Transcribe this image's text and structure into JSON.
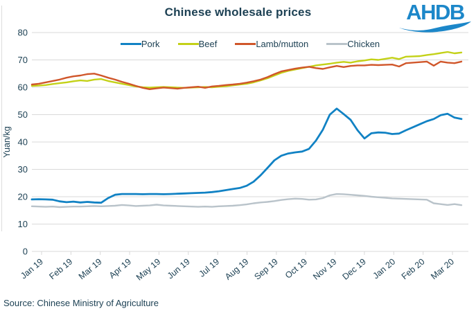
{
  "title": "Chinese wholesale prices",
  "logo": {
    "text": "AHDB",
    "color": "#1c87c9"
  },
  "source_text": "Source: Chinese Ministry of Agriculture",
  "colors": {
    "text": "#1d4154",
    "grid": "#d9d9d9",
    "pork": "#1182c4",
    "beef": "#c3d117",
    "lamb": "#d0562a",
    "chicken": "#b9c3ca"
  },
  "chart_data": {
    "type": "line",
    "title": "Chinese wholesale prices",
    "xlabel": "",
    "ylabel": "Yuan/kg",
    "ylim": [
      0,
      80
    ],
    "y_ticks": [
      0,
      10,
      20,
      30,
      40,
      50,
      60,
      70,
      80
    ],
    "x_tick_labels": [
      "Jan 19",
      "Feb 19",
      "Mar 19",
      "Apr 19",
      "May 19",
      "Jun 19",
      "Jul 19",
      "Aug 19",
      "Sep 19",
      "Oct 19",
      "Nov 19",
      "Dec 19",
      "Jan 20",
      "Feb 20",
      "Mar 20"
    ],
    "grid": "horizontal",
    "legend_position": "top",
    "sampling": "weekly",
    "series": [
      {
        "name": "Pork",
        "color": "#1182c4",
        "values": [
          19.0,
          19.1,
          19.0,
          18.9,
          18.3,
          18.0,
          18.2,
          17.9,
          18.1,
          17.9,
          17.8,
          19.5,
          20.7,
          21.0,
          21.0,
          21.0,
          20.9,
          21.0,
          21.0,
          20.9,
          21.0,
          21.1,
          21.2,
          21.3,
          21.4,
          21.5,
          21.7,
          22.0,
          22.4,
          22.8,
          23.2,
          24.0,
          25.5,
          27.8,
          30.5,
          33.3,
          35.0,
          35.8,
          36.2,
          36.5,
          37.5,
          40.5,
          44.5,
          50.0,
          52.2,
          50.2,
          48.1,
          44.3,
          41.3,
          43.2,
          43.5,
          43.4,
          42.9,
          43.1,
          44.3,
          45.4,
          46.5,
          47.6,
          48.4,
          49.8,
          50.3,
          48.9,
          48.4
        ]
      },
      {
        "name": "Beef",
        "color": "#c3d117",
        "values": [
          60.5,
          60.6,
          60.8,
          61.2,
          61.5,
          61.8,
          62.2,
          62.5,
          62.3,
          62.8,
          63.0,
          62.3,
          61.8,
          61.3,
          60.8,
          60.3,
          60.0,
          59.9,
          60.0,
          60.1,
          60.0,
          59.9,
          59.8,
          59.9,
          60.0,
          60.1,
          60.0,
          60.2,
          60.4,
          60.7,
          61.0,
          61.3,
          61.8,
          62.5,
          63.3,
          64.3,
          65.3,
          66.0,
          66.5,
          67.0,
          67.5,
          68.0,
          68.3,
          68.6,
          69.0,
          69.3,
          69.0,
          69.5,
          69.8,
          70.2,
          70.0,
          70.4,
          70.8,
          70.3,
          71.2,
          71.3,
          71.4,
          71.8,
          72.1,
          72.5,
          72.9,
          72.4,
          72.7
        ]
      },
      {
        "name": "Lamb/mutton",
        "color": "#d0562a",
        "values": [
          61.0,
          61.3,
          61.8,
          62.3,
          62.8,
          63.5,
          64.0,
          64.3,
          64.8,
          65.0,
          64.3,
          63.5,
          62.8,
          62.0,
          61.3,
          60.5,
          59.8,
          59.3,
          59.6,
          59.9,
          59.7,
          59.5,
          59.8,
          60.0,
          60.2,
          59.8,
          60.3,
          60.5,
          60.8,
          61.0,
          61.3,
          61.7,
          62.2,
          62.8,
          63.7,
          64.8,
          65.8,
          66.3,
          66.8,
          67.2,
          67.5,
          67.0,
          66.7,
          67.3,
          67.8,
          67.4,
          67.8,
          68.0,
          68.0,
          68.2,
          68.1,
          68.2,
          68.3,
          67.6,
          68.8,
          69.0,
          69.2,
          69.4,
          67.9,
          69.4,
          69.0,
          68.8,
          69.4
        ]
      },
      {
        "name": "Chicken",
        "color": "#b9c3ca",
        "values": [
          16.5,
          16.4,
          16.3,
          16.4,
          16.2,
          16.3,
          16.4,
          16.4,
          16.5,
          16.6,
          16.5,
          16.6,
          16.7,
          17.0,
          16.8,
          16.6,
          16.7,
          16.8,
          17.1,
          16.8,
          16.7,
          16.6,
          16.5,
          16.4,
          16.3,
          16.4,
          16.3,
          16.5,
          16.6,
          16.7,
          16.9,
          17.2,
          17.6,
          17.9,
          18.1,
          18.4,
          18.8,
          19.1,
          19.3,
          19.2,
          18.9,
          19.0,
          19.5,
          20.5,
          21.0,
          20.9,
          20.7,
          20.5,
          20.3,
          20.0,
          19.8,
          19.6,
          19.4,
          19.3,
          19.2,
          19.1,
          19.0,
          18.9,
          17.6,
          17.3,
          17.0,
          17.3,
          16.9
        ]
      }
    ]
  }
}
